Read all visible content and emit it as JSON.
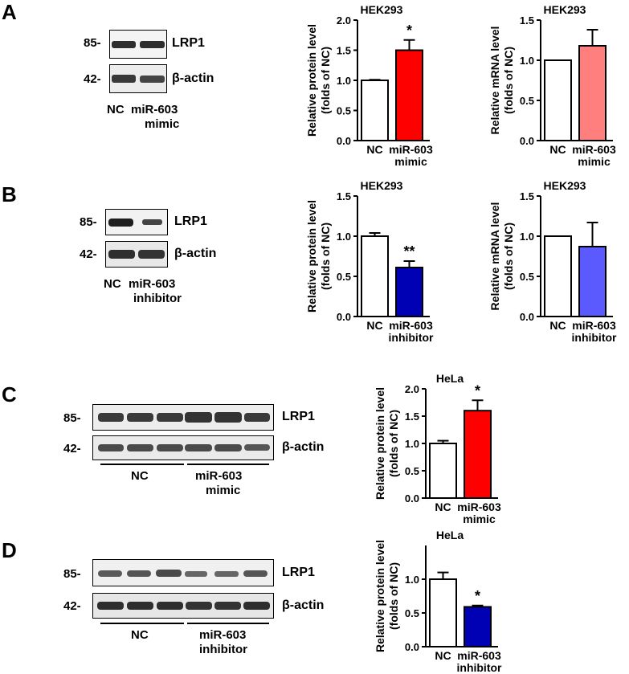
{
  "figure": {
    "panels": [
      {
        "letter": "A",
        "blot": {
          "mw": [
            "85-",
            "42-"
          ],
          "proteins": [
            "LRP1",
            "β-actin"
          ],
          "groups": [
            "NC",
            "miR-603",
            "mimic"
          ]
        }
      },
      {
        "letter": "B",
        "blot": {
          "mw": [
            "85-",
            "42-"
          ],
          "proteins": [
            "LRP1",
            "β-actin"
          ],
          "groups": [
            "NC",
            "miR-603",
            "inhibitor"
          ]
        }
      },
      {
        "letter": "C",
        "blot": {
          "mw": [
            "85-",
            "42-"
          ],
          "proteins": [
            "LRP1",
            "β-actin"
          ],
          "groups": [
            "NC",
            "miR-603",
            "mimic"
          ]
        }
      },
      {
        "letter": "D",
        "blot": {
          "mw": [
            "85-",
            "42-"
          ],
          "proteins": [
            "LRP1",
            "β-actin"
          ],
          "groups": [
            "NC",
            "miR-603",
            "inhibitor"
          ]
        }
      }
    ]
  },
  "chart_data": [
    {
      "id": "A1",
      "type": "bar",
      "title": "HEK293",
      "ylabel": [
        "Relative protein level",
        "(folds of NC)"
      ],
      "categories": [
        [
          "NC"
        ],
        [
          "miR-603",
          "mimic"
        ]
      ],
      "values": [
        1.0,
        1.5
      ],
      "errors": [
        0.01,
        0.17
      ],
      "colors": [
        "#ffffff",
        "#ff0000"
      ],
      "significance": [
        "",
        "*"
      ],
      "ylim": [
        0,
        2.0
      ],
      "ticks": [
        "0.0",
        "0.5",
        "1.0",
        "1.5",
        "2.0"
      ]
    },
    {
      "id": "A2",
      "type": "bar",
      "title": "HEK293",
      "ylabel": [
        "Relative mRNA level",
        "(folds of NC)"
      ],
      "categories": [
        [
          "NC"
        ],
        [
          "miR-603",
          "mimic"
        ]
      ],
      "values": [
        1.0,
        1.18
      ],
      "errors": [
        0,
        0.2
      ],
      "colors": [
        "#ffffff",
        "#ff7f7f"
      ],
      "significance": [
        "",
        ""
      ],
      "ylim": [
        0,
        1.5
      ],
      "ticks": [
        "0.0",
        "0.5",
        "1.0",
        "1.5"
      ]
    },
    {
      "id": "B1",
      "type": "bar",
      "title": "HEK293",
      "ylabel": [
        "Relative protein level",
        "(folds of NC)"
      ],
      "categories": [
        [
          "NC"
        ],
        [
          "miR-603",
          "inhibitor"
        ]
      ],
      "values": [
        1.0,
        0.61
      ],
      "errors": [
        0.04,
        0.08
      ],
      "colors": [
        "#ffffff",
        "#0000b4"
      ],
      "significance": [
        "",
        "**"
      ],
      "ylim": [
        0,
        1.5
      ],
      "ticks": [
        "0.0",
        "0.5",
        "1.0",
        "1.5"
      ]
    },
    {
      "id": "B2",
      "type": "bar",
      "title": "HEK293",
      "ylabel": [
        "Relative mRNA level",
        "(folds of NC)"
      ],
      "categories": [
        [
          "NC"
        ],
        [
          "miR-603",
          "inhibitor"
        ]
      ],
      "values": [
        1.0,
        0.87
      ],
      "errors": [
        0,
        0.3
      ],
      "colors": [
        "#ffffff",
        "#5a5aff"
      ],
      "significance": [
        "",
        ""
      ],
      "ylim": [
        0,
        1.5
      ],
      "ticks": [
        "0.0",
        "0.5",
        "1.0",
        "1.5"
      ]
    },
    {
      "id": "C1",
      "type": "bar",
      "title": "HeLa",
      "ylabel": [
        "Relative protein level",
        "(folds of NC)"
      ],
      "categories": [
        [
          "NC"
        ],
        [
          "miR-603",
          "mimic"
        ]
      ],
      "values": [
        1.0,
        1.6
      ],
      "errors": [
        0.05,
        0.19
      ],
      "colors": [
        "#ffffff",
        "#ff0000"
      ],
      "significance": [
        "",
        "*"
      ],
      "ylim": [
        0,
        2.0
      ],
      "ticks": [
        "0.0",
        "0.5",
        "1.0",
        "1.5",
        "2.0"
      ]
    },
    {
      "id": "D1",
      "type": "bar",
      "title": "HeLa",
      "ylabel": [
        "Relative protein level",
        "(folds of NC)"
      ],
      "categories": [
        [
          "NC"
        ],
        [
          "miR-603",
          "inhibitor"
        ]
      ],
      "values": [
        1.0,
        0.59
      ],
      "errors": [
        0.1,
        0.02
      ],
      "colors": [
        "#ffffff",
        "#0000b4"
      ],
      "significance": [
        "",
        "*"
      ],
      "ylim": [
        0,
        1.5
      ],
      "ticks": [
        "0.0",
        "0.5",
        "1.0"
      ]
    }
  ]
}
